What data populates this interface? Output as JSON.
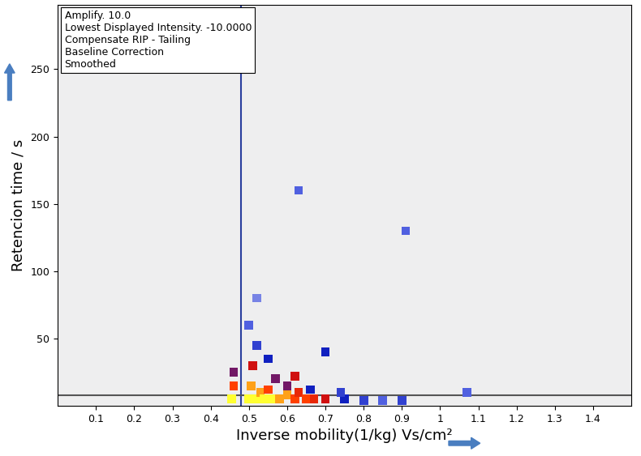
{
  "chart_data": {
    "type": "heatmap",
    "xlabel": "Inverse mobility(1/kg) Vs/cm²",
    "ylabel": "Retencion time / s",
    "annotations": [
      "Amplify. 10.0",
      "Lowest Displayed Intensity. -10.0000",
      "Compensate RIP - Tailing",
      "Baseline Correction",
      "Smoothed"
    ],
    "xlim": [
      0,
      1.5
    ],
    "ylim": [
      0,
      298
    ],
    "xticks": [
      0.1,
      0.2,
      0.3,
      0.4,
      0.5,
      0.6,
      0.7,
      0.8,
      0.9,
      1,
      1.1,
      1.2,
      1.3,
      1.4
    ],
    "yticks": [
      50,
      100,
      150,
      200,
      250
    ],
    "color_range": [
      0,
      10
    ],
    "points": {
      "x": [
        0.455,
        0.46,
        0.46,
        0.5,
        0.505,
        0.51,
        0.52,
        0.53,
        0.54,
        0.55,
        0.56,
        0.57,
        0.58,
        0.6,
        0.62,
        0.63,
        0.65,
        0.67,
        0.7,
        0.7,
        0.62,
        0.55,
        0.52,
        0.75,
        0.8,
        0.85,
        0.9,
        0.6,
        0.66,
        0.74,
        0.63,
        0.91,
        1.07,
        0.5,
        0.52
      ],
      "y": [
        5,
        15,
        25,
        5,
        15,
        30,
        5,
        10,
        5,
        12,
        5,
        20,
        5,
        8,
        5,
        10,
        5,
        5,
        5,
        40,
        22,
        35,
        45,
        5,
        4,
        4,
        4,
        15,
        12,
        10,
        160,
        130,
        10,
        60,
        80
      ],
      "values": [
        10,
        8,
        5,
        10,
        9,
        6,
        10,
        9,
        10,
        8,
        10,
        5,
        9,
        9,
        8,
        7,
        8,
        7,
        6,
        4,
        6,
        4,
        3,
        4,
        3,
        2,
        3,
        5,
        4,
        3,
        2,
        2,
        2,
        2,
        1.5
      ]
    },
    "lines": [
      {
        "x": [
          0.48,
          0.48
        ],
        "y": [
          0,
          298
        ],
        "color": "#2a3f9e"
      },
      {
        "x": [
          0,
          1.5
        ],
        "y": [
          8,
          8
        ],
        "color": "#555555"
      }
    ]
  }
}
